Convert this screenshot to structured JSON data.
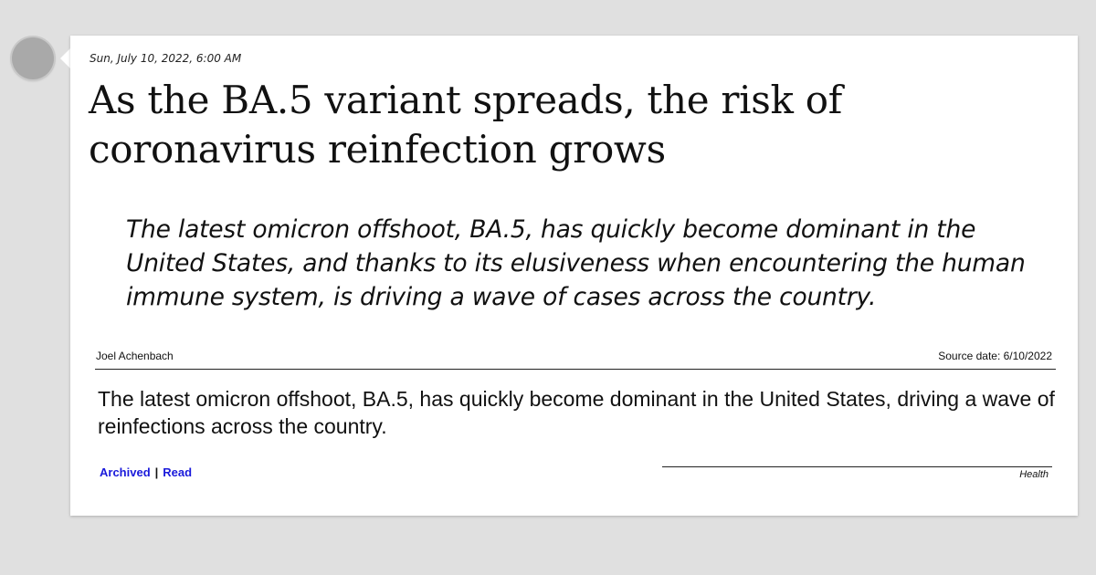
{
  "post": {
    "date": "Sun, July 10, 2022, 6:00 AM",
    "title": "As the BA.5 variant spreads, the risk of coronavirus reinfection grows",
    "quote": "The latest omicron offshoot, BA.5, has quickly become dominant in the United States, and thanks to its elusiveness when encountering the human immune system, is driving a wave of cases across the country.",
    "author": "Joel Achenbach",
    "source_date": "Source date: 6/10/2022",
    "summary": "The latest omicron offshoot, BA.5, has quickly become dominant in the United States, driving a wave of reinfections across the country.",
    "links": {
      "archived": "Archived",
      "separator": "|",
      "read": "Read"
    },
    "category": "Health"
  },
  "colors": {
    "background": "#e0e0e0",
    "card": "#ffffff",
    "link": "#1a1adb",
    "avatar": "#a9a9a9"
  }
}
